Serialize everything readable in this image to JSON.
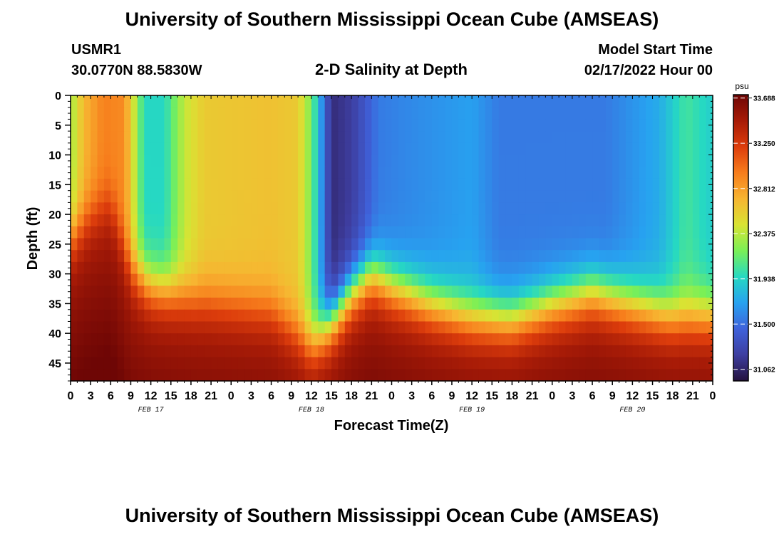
{
  "header": {
    "title": "University of Southern Mississippi Ocean Cube (AMSEAS)",
    "station": "USMR1",
    "coords": "30.0770N  88.5830W",
    "subtitle": "2-D Salinity at Depth",
    "model_label": "Model Start Time",
    "model_start": "02/17/2022 Hour 00"
  },
  "footer": {
    "title": "University of Southern Mississippi Ocean Cube (AMSEAS)"
  },
  "chart_data": {
    "type": "heatmap",
    "title": "2-D Salinity at Depth",
    "xlabel": "Forecast Time(Z)",
    "ylabel": "Depth (ft)",
    "x_unit": "hours since 02/17/2022 00Z",
    "xlim": [
      0,
      96
    ],
    "ylim": [
      0,
      48
    ],
    "y_inverted": true,
    "x_tick_labels": [
      "0",
      "3",
      "6",
      "9",
      "12",
      "15",
      "18",
      "21",
      "0",
      "3",
      "6",
      "9",
      "12",
      "15",
      "18",
      "21",
      "0",
      "3",
      "6",
      "9",
      "12",
      "15",
      "18",
      "21",
      "0",
      "3",
      "6",
      "9",
      "12",
      "15",
      "18",
      "21",
      "0"
    ],
    "y_ticks": [
      0,
      5,
      10,
      15,
      20,
      25,
      30,
      35,
      40,
      45
    ],
    "date_labels": [
      {
        "label": "FEB 17",
        "hour": 12
      },
      {
        "label": "FEB 18",
        "hour": 36
      },
      {
        "label": "FEB 19",
        "hour": 60
      },
      {
        "label": "FEB 20",
        "hour": 84
      }
    ],
    "colorbar": {
      "unit": "psu",
      "min": 30.95,
      "max": 33.72,
      "ticks": [
        "33.688",
        "33.250",
        "32.812",
        "32.375",
        "31.938",
        "31.500",
        "31.062"
      ],
      "colors": [
        "#25123e",
        "#3e3ea0",
        "#3f62db",
        "#27a2f0",
        "#26d9c2",
        "#7af057",
        "#d9e333",
        "#f7b531",
        "#f77d1c",
        "#dd3d0c",
        "#a71b07",
        "#6e0605"
      ]
    },
    "surface_salinity_profile": [
      {
        "hour": 0,
        "psu": 32.3
      },
      {
        "hour": 2,
        "psu": 32.7
      },
      {
        "hour": 5,
        "psu": 32.95
      },
      {
        "hour": 8,
        "psu": 32.9
      },
      {
        "hour": 11,
        "psu": 31.95
      },
      {
        "hour": 14,
        "psu": 31.95
      },
      {
        "hour": 17,
        "psu": 32.4
      },
      {
        "hour": 20,
        "psu": 32.6
      },
      {
        "hour": 30,
        "psu": 32.65
      },
      {
        "hour": 34,
        "psu": 32.6
      },
      {
        "hour": 36,
        "psu": 32.2
      },
      {
        "hour": 39,
        "psu": 31.1
      },
      {
        "hour": 42,
        "psu": 31.2
      },
      {
        "hour": 46,
        "psu": 31.55
      },
      {
        "hour": 50,
        "psu": 31.6
      },
      {
        "hour": 60,
        "psu": 31.7
      },
      {
        "hour": 64,
        "psu": 31.55
      },
      {
        "hour": 72,
        "psu": 31.55
      },
      {
        "hour": 80,
        "psu": 31.55
      },
      {
        "hour": 88,
        "psu": 31.75
      },
      {
        "hour": 92,
        "psu": 32.05
      },
      {
        "hour": 96,
        "psu": 31.9
      }
    ],
    "deep_layer_top_depth_ft": [
      {
        "hour": 0,
        "depth": 24
      },
      {
        "hour": 3,
        "depth": 20
      },
      {
        "hour": 6,
        "depth": 18
      },
      {
        "hour": 9,
        "depth": 29
      },
      {
        "hour": 12,
        "depth": 32
      },
      {
        "hour": 18,
        "depth": 34
      },
      {
        "hour": 24,
        "depth": 35
      },
      {
        "hour": 30,
        "depth": 36
      },
      {
        "hour": 33,
        "depth": 39
      },
      {
        "hour": 36,
        "depth": 42
      },
      {
        "hour": 39,
        "depth": 38
      },
      {
        "hour": 42,
        "depth": 33
      },
      {
        "hour": 45,
        "depth": 30
      },
      {
        "hour": 48,
        "depth": 32
      },
      {
        "hour": 54,
        "depth": 35
      },
      {
        "hour": 60,
        "depth": 37
      },
      {
        "hour": 66,
        "depth": 37.5
      },
      {
        "hour": 72,
        "depth": 35
      },
      {
        "hour": 78,
        "depth": 33
      },
      {
        "hour": 84,
        "depth": 35
      },
      {
        "hour": 90,
        "depth": 37
      },
      {
        "hour": 96,
        "depth": 37
      }
    ],
    "deep_layer_psu": 33.45
  }
}
